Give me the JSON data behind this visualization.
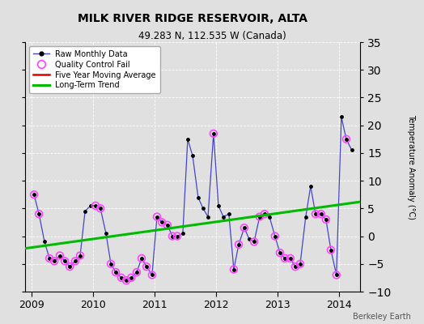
{
  "title": "MILK RIVER RIDGE RESERVOIR, ALTA",
  "subtitle": "49.283 N, 112.535 W (Canada)",
  "ylabel": "Temperature Anomaly (°C)",
  "watermark": "Berkeley Earth",
  "fig_bg_color": "#e0e0e0",
  "plot_bg_color": "#e0e0e0",
  "ylim": [
    -10,
    35
  ],
  "yticks": [
    -10,
    -5,
    0,
    5,
    10,
    15,
    20,
    25,
    30,
    35
  ],
  "xlim_start": 2008.9,
  "xlim_end": 2014.35,
  "raw_x": [
    2009.04,
    2009.12,
    2009.21,
    2009.29,
    2009.37,
    2009.46,
    2009.54,
    2009.62,
    2009.71,
    2009.79,
    2009.87,
    2009.96,
    2010.04,
    2010.12,
    2010.21,
    2010.29,
    2010.37,
    2010.46,
    2010.54,
    2010.62,
    2010.71,
    2010.79,
    2010.87,
    2010.96,
    2011.04,
    2011.12,
    2011.21,
    2011.29,
    2011.37,
    2011.46,
    2011.54,
    2011.62,
    2011.71,
    2011.79,
    2011.87,
    2011.96,
    2012.04,
    2012.12,
    2012.21,
    2012.29,
    2012.37,
    2012.46,
    2012.54,
    2012.62,
    2012.71,
    2012.79,
    2012.87,
    2012.96,
    2013.04,
    2013.12,
    2013.21,
    2013.29,
    2013.37,
    2013.46,
    2013.54,
    2013.62,
    2013.71,
    2013.79,
    2013.87,
    2013.96,
    2014.04,
    2014.12,
    2014.21
  ],
  "raw_y": [
    7.5,
    4.0,
    -1.0,
    -4.0,
    -4.5,
    -3.5,
    -4.5,
    -5.5,
    -4.5,
    -3.5,
    4.5,
    5.5,
    5.5,
    5.0,
    0.5,
    -5.0,
    -6.5,
    -7.5,
    -8.0,
    -7.5,
    -6.5,
    -4.0,
    -5.5,
    -7.0,
    3.5,
    2.5,
    2.0,
    0.0,
    0.0,
    0.5,
    17.5,
    14.5,
    7.0,
    5.0,
    3.5,
    18.5,
    5.5,
    3.5,
    4.0,
    -6.0,
    -1.5,
    1.5,
    -0.5,
    -1.0,
    3.5,
    4.0,
    3.5,
    0.0,
    -3.0,
    -4.0,
    -4.0,
    -5.5,
    -5.0,
    3.5,
    9.0,
    4.0,
    4.0,
    3.0,
    -2.5,
    -7.0,
    21.5,
    17.5,
    15.5
  ],
  "qc_fail_x": [
    2009.04,
    2009.12,
    2009.29,
    2009.37,
    2009.46,
    2009.54,
    2009.62,
    2009.71,
    2009.79,
    2010.04,
    2010.12,
    2010.29,
    2010.37,
    2010.46,
    2010.54,
    2010.62,
    2010.71,
    2010.79,
    2010.87,
    2010.96,
    2011.04,
    2011.12,
    2011.21,
    2011.29,
    2011.37,
    2011.96,
    2012.29,
    2012.37,
    2012.46,
    2012.62,
    2012.71,
    2012.79,
    2012.96,
    2013.04,
    2013.12,
    2013.21,
    2013.29,
    2013.37,
    2013.62,
    2013.71,
    2013.79,
    2013.87,
    2013.96,
    2014.12
  ],
  "qc_fail_y": [
    7.5,
    4.0,
    -4.0,
    -4.5,
    -3.5,
    -4.5,
    -5.5,
    -4.5,
    -3.5,
    5.5,
    5.0,
    -5.0,
    -6.5,
    -7.5,
    -8.0,
    -7.5,
    -6.5,
    -4.0,
    -5.5,
    -7.0,
    3.5,
    2.5,
    2.0,
    0.0,
    0.0,
    18.5,
    -6.0,
    -1.5,
    1.5,
    -1.0,
    3.5,
    4.0,
    0.0,
    -3.0,
    -4.0,
    -4.0,
    -5.5,
    -5.0,
    4.0,
    4.0,
    3.0,
    -2.5,
    -7.0,
    17.5
  ],
  "trend_x": [
    2008.9,
    2014.35
  ],
  "trend_y": [
    -2.2,
    6.2
  ],
  "raw_line_color": "#4444cc",
  "raw_marker_color": "#000000",
  "qc_marker_color": "#ff44ff",
  "trend_color": "#00bb00",
  "moving_avg_color": "#dd0000",
  "legend_bg": "#ffffff",
  "grid_color": "#ffffff",
  "xtick_years": [
    2009,
    2010,
    2011,
    2012,
    2013,
    2014
  ]
}
